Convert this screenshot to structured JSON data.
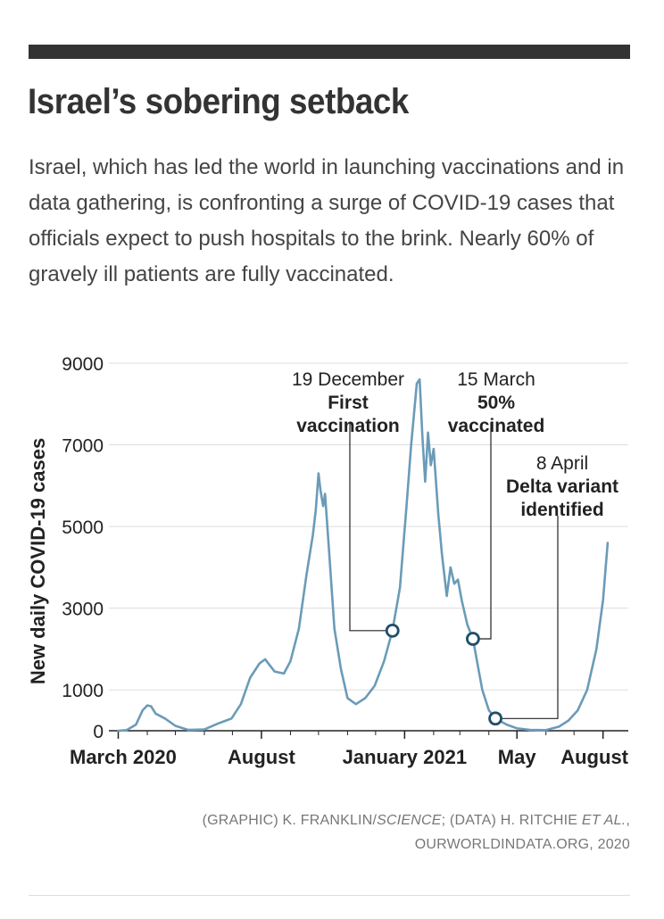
{
  "header": {
    "title": "Israel’s sobering setback",
    "subtitle": "Israel, which has led the world in launching vaccinations and in data gathering, is confronting a surge of COVID-19 cases that officials expect to push hospitals to the brink. Nearly 60% of gravely ill patients are fully vaccinated."
  },
  "colors": {
    "line": "#6b9bb8",
    "marker": "#1f4e6b",
    "grid": "#dddddd",
    "text": "#222222"
  },
  "chart_data": {
    "type": "line",
    "title": "",
    "xlabel": "",
    "ylabel": "New daily COVID-19 cases",
    "ylim": [
      0,
      9000
    ],
    "yticks": [
      0,
      1000,
      3000,
      5000,
      7000,
      9000
    ],
    "xticks": [
      {
        "date": "2020-03-01",
        "label": "March 2020"
      },
      {
        "date": "2020-08-01",
        "label": "August"
      },
      {
        "date": "2021-01-01",
        "label": "January 2021"
      },
      {
        "date": "2021-05-01",
        "label": "May"
      },
      {
        "date": "2021-08-01",
        "label": "August"
      }
    ],
    "grid": true,
    "series": [
      {
        "points": [
          [
            "2020-03-01",
            0
          ],
          [
            "2020-03-10",
            15
          ],
          [
            "2020-03-20",
            150
          ],
          [
            "2020-03-27",
            500
          ],
          [
            "2020-04-01",
            620
          ],
          [
            "2020-04-05",
            600
          ],
          [
            "2020-04-10",
            420
          ],
          [
            "2020-04-20",
            300
          ],
          [
            "2020-05-01",
            120
          ],
          [
            "2020-05-15",
            20
          ],
          [
            "2020-06-01",
            30
          ],
          [
            "2020-06-15",
            170
          ],
          [
            "2020-06-30",
            300
          ],
          [
            "2020-07-10",
            650
          ],
          [
            "2020-07-20",
            1300
          ],
          [
            "2020-07-30",
            1650
          ],
          [
            "2020-08-05",
            1750
          ],
          [
            "2020-08-10",
            1600
          ],
          [
            "2020-08-15",
            1450
          ],
          [
            "2020-08-25",
            1400
          ],
          [
            "2020-09-01",
            1700
          ],
          [
            "2020-09-10",
            2500
          ],
          [
            "2020-09-18",
            3800
          ],
          [
            "2020-09-25",
            4800
          ],
          [
            "2020-09-28",
            5400
          ],
          [
            "2020-10-01",
            6300
          ],
          [
            "2020-10-03",
            5900
          ],
          [
            "2020-10-06",
            5500
          ],
          [
            "2020-10-08",
            5800
          ],
          [
            "2020-10-12",
            4500
          ],
          [
            "2020-10-18",
            2500
          ],
          [
            "2020-10-25",
            1500
          ],
          [
            "2020-11-01",
            800
          ],
          [
            "2020-11-10",
            650
          ],
          [
            "2020-11-20",
            800
          ],
          [
            "2020-11-30",
            1100
          ],
          [
            "2020-12-10",
            1700
          ],
          [
            "2020-12-19",
            2450
          ],
          [
            "2020-12-27",
            3500
          ],
          [
            "2021-01-03",
            5500
          ],
          [
            "2021-01-08",
            7000
          ],
          [
            "2021-01-14",
            8500
          ],
          [
            "2021-01-17",
            8600
          ],
          [
            "2021-01-20",
            7200
          ],
          [
            "2021-01-23",
            6100
          ],
          [
            "2021-01-26",
            7300
          ],
          [
            "2021-01-29",
            6500
          ],
          [
            "2021-02-01",
            6900
          ],
          [
            "2021-02-06",
            5300
          ],
          [
            "2021-02-10",
            4300
          ],
          [
            "2021-02-15",
            3300
          ],
          [
            "2021-02-19",
            4000
          ],
          [
            "2021-02-23",
            3600
          ],
          [
            "2021-02-27",
            3700
          ],
          [
            "2021-03-03",
            3200
          ],
          [
            "2021-03-09",
            2600
          ],
          [
            "2021-03-15",
            2250
          ],
          [
            "2021-03-25",
            1000
          ],
          [
            "2021-04-01",
            500
          ],
          [
            "2021-04-08",
            300
          ],
          [
            "2021-04-20",
            150
          ],
          [
            "2021-05-01",
            60
          ],
          [
            "2021-05-15",
            20
          ],
          [
            "2021-06-01",
            15
          ],
          [
            "2021-06-15",
            100
          ],
          [
            "2021-06-25",
            250
          ],
          [
            "2021-07-05",
            500
          ],
          [
            "2021-07-15",
            1000
          ],
          [
            "2021-07-25",
            2000
          ],
          [
            "2021-08-01",
            3200
          ],
          [
            "2021-08-06",
            4600
          ]
        ]
      }
    ],
    "annotations": [
      {
        "date": "2020-12-19",
        "value": 2450,
        "label_normal": "19 December",
        "label_bold": [
          "First",
          "vaccination"
        ]
      },
      {
        "date": "2021-03-15",
        "value": 2250,
        "label_normal": "15 March",
        "label_bold": [
          "50%",
          "vaccinated"
        ]
      },
      {
        "date": "2021-04-08",
        "value": 300,
        "label_normal": "8 April",
        "label_bold": [
          "Delta variant",
          "identified"
        ]
      }
    ]
  },
  "credit": {
    "line1_pre": "(GRAPHIC) K. FRANKLIN/",
    "line1_italic": "SCIENCE",
    "line1_mid": "; (DATA) H. RITCHIE ",
    "line1_italic2": "ET AL.",
    "line1_post": ",",
    "line2": "OURWORLDINDATA.ORG, 2020"
  }
}
